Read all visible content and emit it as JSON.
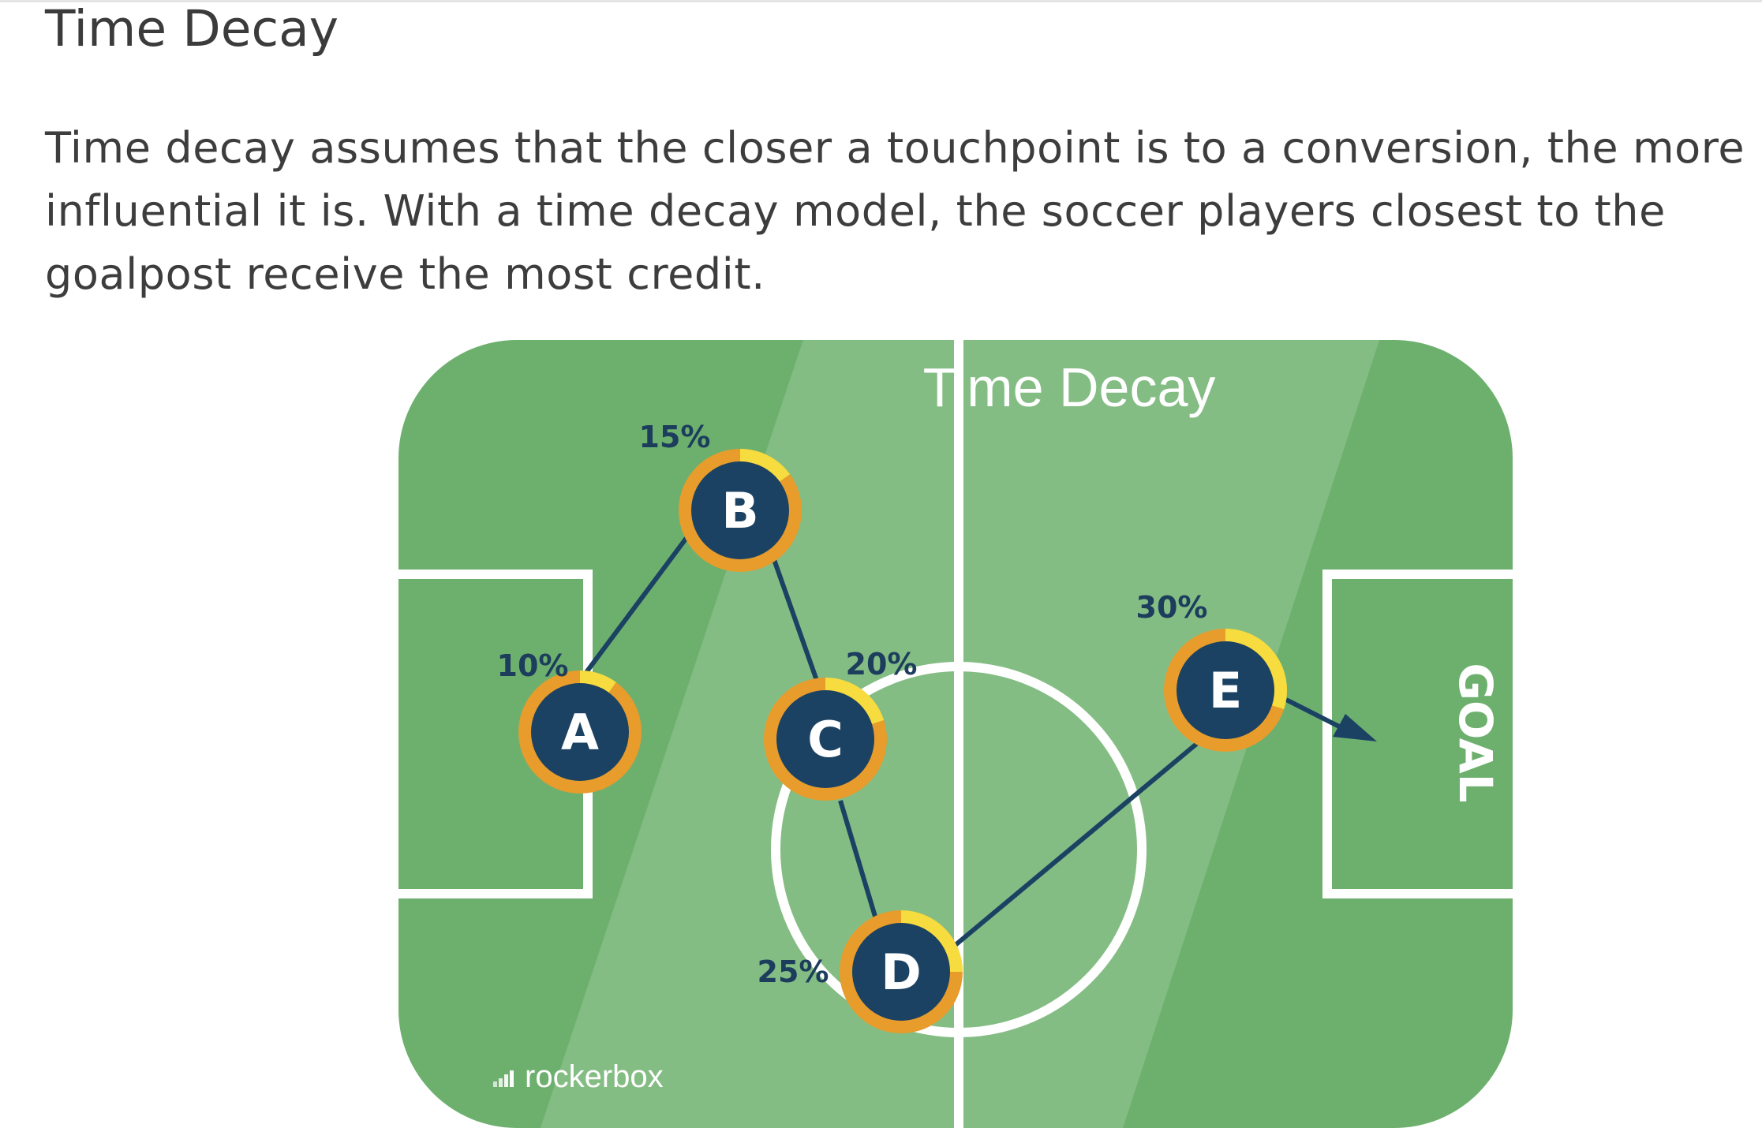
{
  "heading": "Time Decay",
  "description": "Time decay assumes that the closer a touchpoint is to a conversion, the more influential it is. With a time decay model, the soccer players closest to the goalpost receive the most credit.",
  "diagram": {
    "title": "Time Decay",
    "goal_label": "GOAL",
    "brand": "rockerbox",
    "touchpoints": [
      {
        "label": "A",
        "credit": "10%",
        "value": 10
      },
      {
        "label": "B",
        "credit": "15%",
        "value": 15
      },
      {
        "label": "C",
        "credit": "20%",
        "value": 20
      },
      {
        "label": "D",
        "credit": "25%",
        "value": 25
      },
      {
        "label": "E",
        "credit": "30%",
        "value": 30
      }
    ],
    "colors": {
      "field_dark": "#6db06e",
      "field_light": "#84bd84",
      "lines": "#ffffff",
      "node_fill": "#1b4262",
      "node_ring": "#e79c2c",
      "node_ring_highlight": "#f6dc3f",
      "path": "#1b4262",
      "credit_text": "#1d3d5d",
      "brand_text": "#ffffff"
    }
  }
}
